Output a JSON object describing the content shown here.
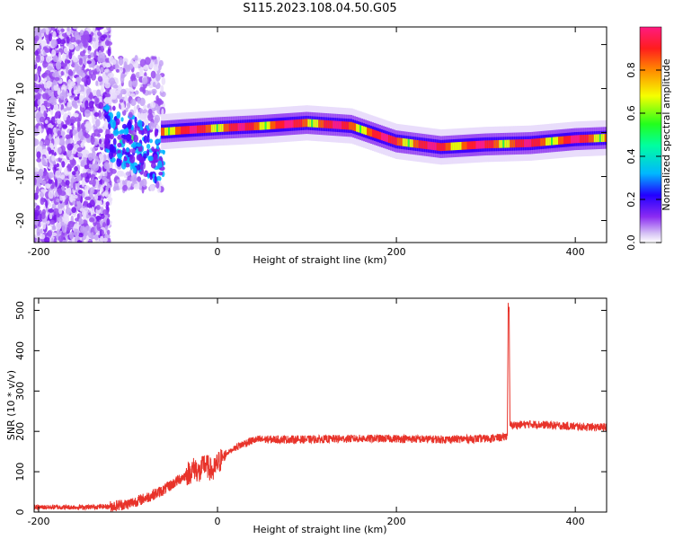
{
  "title": "S115.2023.108.04.50.G05",
  "chart_data": [
    {
      "type": "heatmap",
      "xlabel": "Height of straight line (km)",
      "ylabel": "Frequency (Hz)",
      "xlim": [
        -205,
        435
      ],
      "ylim": [
        -25,
        24
      ],
      "x_ticks": [
        -200,
        0,
        200,
        400
      ],
      "y_ticks": [
        -20,
        -10,
        0,
        10,
        20
      ],
      "colorbar": {
        "label": "Normalized spectral amplitude",
        "range": [
          0,
          1
        ],
        "ticks": [
          0.0,
          0.2,
          0.4,
          0.6,
          0.8
        ]
      },
      "ridge": {
        "x": [
          -60,
          -40,
          0,
          50,
          100,
          150,
          200,
          250,
          300,
          350,
          400,
          435
        ],
        "frequency": [
          0.2,
          0.5,
          1.0,
          1.5,
          2.2,
          1.5,
          -2.0,
          -3.3,
          -2.7,
          -2.4,
          -1.5,
          -1.2
        ]
      },
      "grid": false
    },
    {
      "type": "line",
      "xlabel": "Height of straight line (km)",
      "ylabel": "SNR (10 * v/v)",
      "xlim": [
        -205,
        435
      ],
      "ylim": [
        0,
        530
      ],
      "x_ticks": [
        -200,
        0,
        200,
        400
      ],
      "y_ticks": [
        0,
        100,
        200,
        300,
        400,
        500
      ],
      "series": [
        {
          "color": "#e8332a",
          "x": [
            -205,
            -150,
            -120,
            -100,
            -80,
            -60,
            -40,
            -30,
            -25,
            -20,
            -15,
            -10,
            -5,
            0,
            10,
            20,
            30,
            40,
            50,
            100,
            150,
            200,
            250,
            300,
            320,
            324,
            325,
            326,
            327,
            330,
            350,
            400,
            435
          ],
          "y": [
            12,
            12,
            14,
            20,
            35,
            55,
            85,
            100,
            110,
            95,
            120,
            110,
            100,
            120,
            145,
            160,
            170,
            178,
            180,
            180,
            182,
            182,
            180,
            182,
            185,
            190,
            510,
            500,
            215,
            215,
            218,
            212,
            210
          ]
        }
      ],
      "grid": false
    }
  ]
}
